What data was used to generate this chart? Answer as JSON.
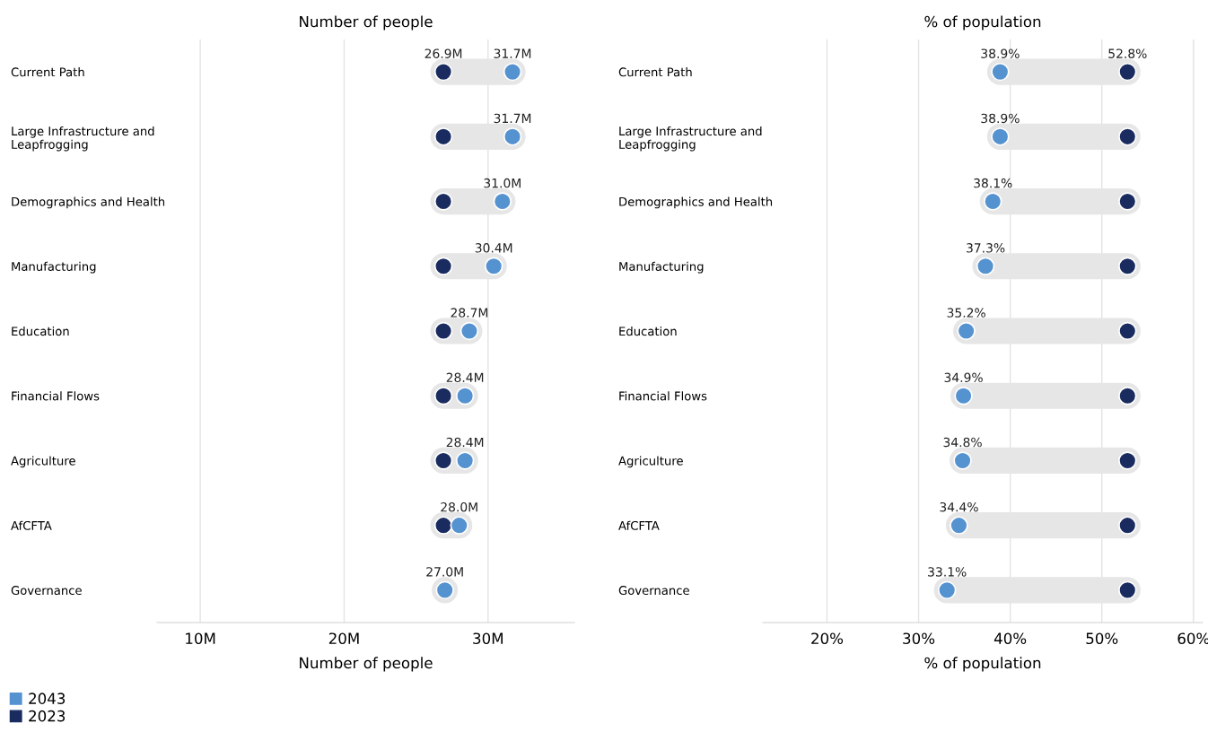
{
  "chart_data": [
    {
      "type": "scatter",
      "title": "Number of people",
      "xlabel": "Number of people",
      "orientation": "horizontal",
      "categories": [
        "Current Path",
        "Large Infrastructure and\nLeapfrogging",
        "Demographics and Health",
        "Manufacturing",
        "Education",
        "Financial Flows",
        "Agriculture",
        "AfCFTA",
        "Governance"
      ],
      "series": [
        {
          "name": "2023",
          "color": "#1a2b5f",
          "values": [
            26.9,
            26.9,
            26.9,
            26.9,
            26.9,
            26.9,
            26.9,
            26.9,
            null
          ],
          "value_labels": [
            "26.9M",
            null,
            null,
            null,
            null,
            null,
            null,
            null,
            null
          ]
        },
        {
          "name": "2043",
          "color": "#5592d0",
          "values": [
            31.7,
            31.7,
            31.0,
            30.4,
            28.7,
            28.4,
            28.4,
            28.0,
            27.0
          ],
          "value_labels": [
            "31.7M",
            "31.7M",
            "31.0M",
            "30.4M",
            "28.7M",
            "28.4M",
            "28.4M",
            "28.0M",
            "27.0M"
          ]
        }
      ],
      "xlim": [
        7,
        36
      ],
      "xticks": [
        {
          "value": 10,
          "label": "10M"
        },
        {
          "value": 20,
          "label": "20M"
        },
        {
          "value": 30,
          "label": "30M"
        }
      ],
      "grid": "x",
      "marker": "circle",
      "legend": "bottom left"
    },
    {
      "type": "scatter",
      "title": "% of population",
      "xlabel": "% of population",
      "orientation": "horizontal",
      "categories": [
        "Current Path",
        "Large Infrastructure and\nLeapfrogging",
        "Demographics and Health",
        "Manufacturing",
        "Education",
        "Financial Flows",
        "Agriculture",
        "AfCFTA",
        "Governance"
      ],
      "series": [
        {
          "color": "#1a2b5f",
          "values": [
            52.8,
            52.8,
            52.8,
            52.8,
            52.8,
            52.8,
            52.8,
            52.8,
            52.8
          ],
          "value_labels": [
            "52.8%",
            null,
            null,
            null,
            null,
            null,
            null,
            null,
            null
          ]
        },
        {
          "color": "#5592d0",
          "values": [
            38.9,
            38.9,
            38.1,
            37.3,
            35.2,
            34.9,
            34.8,
            34.4,
            33.1
          ],
          "value_labels": [
            "38.9%",
            "38.9%",
            "38.1%",
            "37.3%",
            "35.2%",
            "34.9%",
            "34.8%",
            "34.4%",
            "33.1%"
          ]
        }
      ],
      "xlim": [
        13,
        61
      ],
      "xticks": [
        {
          "value": 20,
          "label": "20%"
        },
        {
          "value": 30,
          "label": "30%"
        },
        {
          "value": 40,
          "label": "40%"
        },
        {
          "value": 50,
          "label": "50%"
        },
        {
          "value": 60,
          "label": "60%"
        }
      ],
      "grid": "x",
      "marker": "circle"
    }
  ]
}
